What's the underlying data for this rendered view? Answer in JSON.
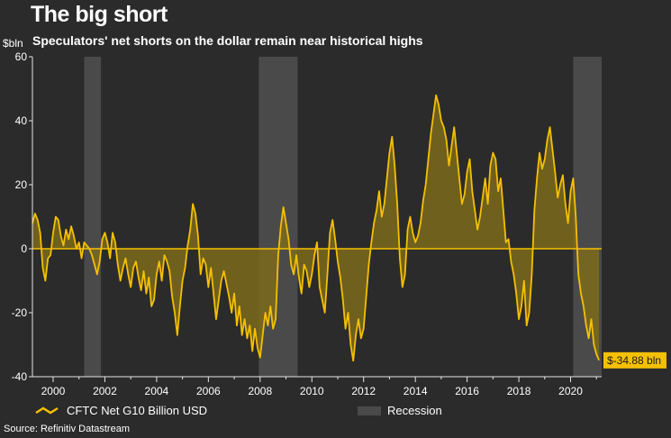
{
  "header": {
    "title": "The big short",
    "subtitle": "Speculators' net shorts on the dollar remain near historical highs",
    "unit": "$bln"
  },
  "source": "Source: Refinitiv Datastream",
  "colors": {
    "background": "#2b2b2b",
    "series": "#f5c000",
    "area": "#7d6a1c",
    "recession": "#4a4a4a",
    "axis": "#e6e6e6",
    "callout_bg": "#f5c000"
  },
  "chart_data": {
    "type": "area",
    "title": "The big short",
    "ylabel": "$bln",
    "xlim": [
      1999.2,
      2021.2
    ],
    "ylim": [
      -40,
      60
    ],
    "y_ticks": [
      -40,
      -20,
      0,
      20,
      40,
      60
    ],
    "y_tick_labels": [
      "-40",
      "-20",
      "0",
      "20",
      "40",
      "60"
    ],
    "x_ticks": [
      2000,
      2002,
      2004,
      2006,
      2008,
      2010,
      2012,
      2014,
      2016,
      2018,
      2020
    ],
    "x_tick_labels": [
      "2000",
      "2002",
      "2004",
      "2006",
      "2008",
      "2010",
      "2012",
      "2014",
      "2016",
      "2018",
      "2020"
    ],
    "recessions": [
      [
        2001.2,
        2001.85
      ],
      [
        2007.95,
        2009.45
      ],
      [
        2020.1,
        2021.2
      ]
    ],
    "legend": [
      {
        "label": "CFTC Net G10 Billion USD",
        "kind": "line"
      },
      {
        "label": "Recession",
        "kind": "band"
      }
    ],
    "last_value_label": "$-34.88 bln",
    "series": [
      {
        "name": "CFTC Net G10 Billion USD",
        "points": [
          [
            1999.2,
            8
          ],
          [
            1999.3,
            11
          ],
          [
            1999.4,
            9
          ],
          [
            1999.5,
            5
          ],
          [
            1999.6,
            -6
          ],
          [
            1999.7,
            -10
          ],
          [
            1999.8,
            -3
          ],
          [
            1999.9,
            -2
          ],
          [
            2000.0,
            5
          ],
          [
            2000.1,
            10
          ],
          [
            2000.2,
            9
          ],
          [
            2000.3,
            4
          ],
          [
            2000.4,
            1
          ],
          [
            2000.5,
            6
          ],
          [
            2000.6,
            3
          ],
          [
            2000.7,
            7
          ],
          [
            2000.8,
            4
          ],
          [
            2000.9,
            0
          ],
          [
            2001.0,
            2
          ],
          [
            2001.1,
            -3
          ],
          [
            2001.2,
            2
          ],
          [
            2001.3,
            1
          ],
          [
            2001.4,
            0
          ],
          [
            2001.5,
            -2
          ],
          [
            2001.6,
            -5
          ],
          [
            2001.7,
            -8
          ],
          [
            2001.8,
            -4
          ],
          [
            2001.9,
            3
          ],
          [
            2002.0,
            5
          ],
          [
            2002.1,
            2
          ],
          [
            2002.2,
            -3
          ],
          [
            2002.3,
            5
          ],
          [
            2002.4,
            2
          ],
          [
            2002.5,
            -5
          ],
          [
            2002.6,
            -10
          ],
          [
            2002.7,
            -6
          ],
          [
            2002.8,
            -3
          ],
          [
            2002.9,
            -8
          ],
          [
            2003.0,
            -12
          ],
          [
            2003.1,
            -6
          ],
          [
            2003.2,
            -4
          ],
          [
            2003.3,
            -9
          ],
          [
            2003.4,
            -13
          ],
          [
            2003.5,
            -7
          ],
          [
            2003.6,
            -14
          ],
          [
            2003.7,
            -9
          ],
          [
            2003.8,
            -18
          ],
          [
            2003.9,
            -16
          ],
          [
            2004.0,
            -8
          ],
          [
            2004.1,
            -4
          ],
          [
            2004.2,
            -10
          ],
          [
            2004.3,
            -2
          ],
          [
            2004.4,
            -4
          ],
          [
            2004.5,
            -7
          ],
          [
            2004.6,
            -15
          ],
          [
            2004.7,
            -20
          ],
          [
            2004.8,
            -27
          ],
          [
            2004.9,
            -18
          ],
          [
            2005.0,
            -10
          ],
          [
            2005.1,
            -6
          ],
          [
            2005.2,
            1
          ],
          [
            2005.3,
            6
          ],
          [
            2005.4,
            14
          ],
          [
            2005.5,
            11
          ],
          [
            2005.6,
            4
          ],
          [
            2005.7,
            -8
          ],
          [
            2005.8,
            -3
          ],
          [
            2005.9,
            -5
          ],
          [
            2006.0,
            -12
          ],
          [
            2006.1,
            -6
          ],
          [
            2006.2,
            -14
          ],
          [
            2006.3,
            -22
          ],
          [
            2006.4,
            -16
          ],
          [
            2006.5,
            -10
          ],
          [
            2006.6,
            -7
          ],
          [
            2006.7,
            -11
          ],
          [
            2006.8,
            -15
          ],
          [
            2006.9,
            -20
          ],
          [
            2007.0,
            -14
          ],
          [
            2007.1,
            -24
          ],
          [
            2007.2,
            -18
          ],
          [
            2007.3,
            -27
          ],
          [
            2007.4,
            -22
          ],
          [
            2007.5,
            -28
          ],
          [
            2007.6,
            -24
          ],
          [
            2007.7,
            -32
          ],
          [
            2007.8,
            -25
          ],
          [
            2007.9,
            -31
          ],
          [
            2008.0,
            -34
          ],
          [
            2008.1,
            -27
          ],
          [
            2008.2,
            -20
          ],
          [
            2008.3,
            -24
          ],
          [
            2008.4,
            -18
          ],
          [
            2008.5,
            -25
          ],
          [
            2008.6,
            -22
          ],
          [
            2008.7,
            -2
          ],
          [
            2008.8,
            7
          ],
          [
            2008.9,
            13
          ],
          [
            2009.0,
            8
          ],
          [
            2009.1,
            3
          ],
          [
            2009.2,
            -5
          ],
          [
            2009.3,
            -8
          ],
          [
            2009.4,
            -2
          ],
          [
            2009.5,
            -9
          ],
          [
            2009.6,
            -14
          ],
          [
            2009.7,
            -5
          ],
          [
            2009.8,
            -7
          ],
          [
            2009.9,
            -12
          ],
          [
            2010.0,
            -8
          ],
          [
            2010.1,
            -2
          ],
          [
            2010.2,
            2
          ],
          [
            2010.3,
            -12
          ],
          [
            2010.4,
            -16
          ],
          [
            2010.5,
            -20
          ],
          [
            2010.6,
            -8
          ],
          [
            2010.7,
            5
          ],
          [
            2010.8,
            9
          ],
          [
            2010.9,
            3
          ],
          [
            2011.0,
            -4
          ],
          [
            2011.1,
            -9
          ],
          [
            2011.2,
            -16
          ],
          [
            2011.3,
            -25
          ],
          [
            2011.4,
            -20
          ],
          [
            2011.5,
            -30
          ],
          [
            2011.6,
            -35
          ],
          [
            2011.7,
            -27
          ],
          [
            2011.8,
            -22
          ],
          [
            2011.9,
            -28
          ],
          [
            2012.0,
            -25
          ],
          [
            2012.1,
            -15
          ],
          [
            2012.2,
            -5
          ],
          [
            2012.3,
            2
          ],
          [
            2012.4,
            8
          ],
          [
            2012.5,
            12
          ],
          [
            2012.6,
            18
          ],
          [
            2012.7,
            10
          ],
          [
            2012.8,
            14
          ],
          [
            2012.9,
            22
          ],
          [
            2013.0,
            30
          ],
          [
            2013.1,
            35
          ],
          [
            2013.2,
            26
          ],
          [
            2013.3,
            14
          ],
          [
            2013.4,
            -3
          ],
          [
            2013.5,
            -12
          ],
          [
            2013.6,
            -8
          ],
          [
            2013.7,
            6
          ],
          [
            2013.8,
            10
          ],
          [
            2013.9,
            5
          ],
          [
            2014.0,
            2
          ],
          [
            2014.1,
            4
          ],
          [
            2014.2,
            8
          ],
          [
            2014.3,
            15
          ],
          [
            2014.4,
            20
          ],
          [
            2014.5,
            28
          ],
          [
            2014.6,
            36
          ],
          [
            2014.7,
            42
          ],
          [
            2014.8,
            48
          ],
          [
            2014.9,
            45
          ],
          [
            2015.0,
            40
          ],
          [
            2015.1,
            38
          ],
          [
            2015.2,
            34
          ],
          [
            2015.3,
            26
          ],
          [
            2015.4,
            32
          ],
          [
            2015.5,
            38
          ],
          [
            2015.6,
            30
          ],
          [
            2015.7,
            22
          ],
          [
            2015.8,
            14
          ],
          [
            2015.9,
            17
          ],
          [
            2016.0,
            24
          ],
          [
            2016.1,
            28
          ],
          [
            2016.2,
            18
          ],
          [
            2016.3,
            12
          ],
          [
            2016.4,
            6
          ],
          [
            2016.5,
            10
          ],
          [
            2016.6,
            16
          ],
          [
            2016.7,
            22
          ],
          [
            2016.8,
            14
          ],
          [
            2016.9,
            26
          ],
          [
            2017.0,
            30
          ],
          [
            2017.1,
            28
          ],
          [
            2017.2,
            18
          ],
          [
            2017.3,
            22
          ],
          [
            2017.4,
            12
          ],
          [
            2017.5,
            2
          ],
          [
            2017.6,
            3
          ],
          [
            2017.7,
            -4
          ],
          [
            2017.8,
            -8
          ],
          [
            2017.9,
            -14
          ],
          [
            2018.0,
            -22
          ],
          [
            2018.1,
            -18
          ],
          [
            2018.2,
            -10
          ],
          [
            2018.3,
            -24
          ],
          [
            2018.4,
            -20
          ],
          [
            2018.5,
            -8
          ],
          [
            2018.6,
            12
          ],
          [
            2018.7,
            22
          ],
          [
            2018.8,
            30
          ],
          [
            2018.9,
            25
          ],
          [
            2019.0,
            28
          ],
          [
            2019.1,
            34
          ],
          [
            2019.2,
            38
          ],
          [
            2019.3,
            31
          ],
          [
            2019.4,
            24
          ],
          [
            2019.5,
            16
          ],
          [
            2019.6,
            20
          ],
          [
            2019.7,
            23
          ],
          [
            2019.8,
            14
          ],
          [
            2019.9,
            8
          ],
          [
            2020.0,
            18
          ],
          [
            2020.1,
            22
          ],
          [
            2020.2,
            10
          ],
          [
            2020.3,
            -8
          ],
          [
            2020.4,
            -14
          ],
          [
            2020.5,
            -18
          ],
          [
            2020.6,
            -24
          ],
          [
            2020.7,
            -28
          ],
          [
            2020.8,
            -22
          ],
          [
            2020.9,
            -30
          ],
          [
            2021.0,
            -33
          ],
          [
            2021.1,
            -34.88
          ]
        ]
      }
    ]
  }
}
